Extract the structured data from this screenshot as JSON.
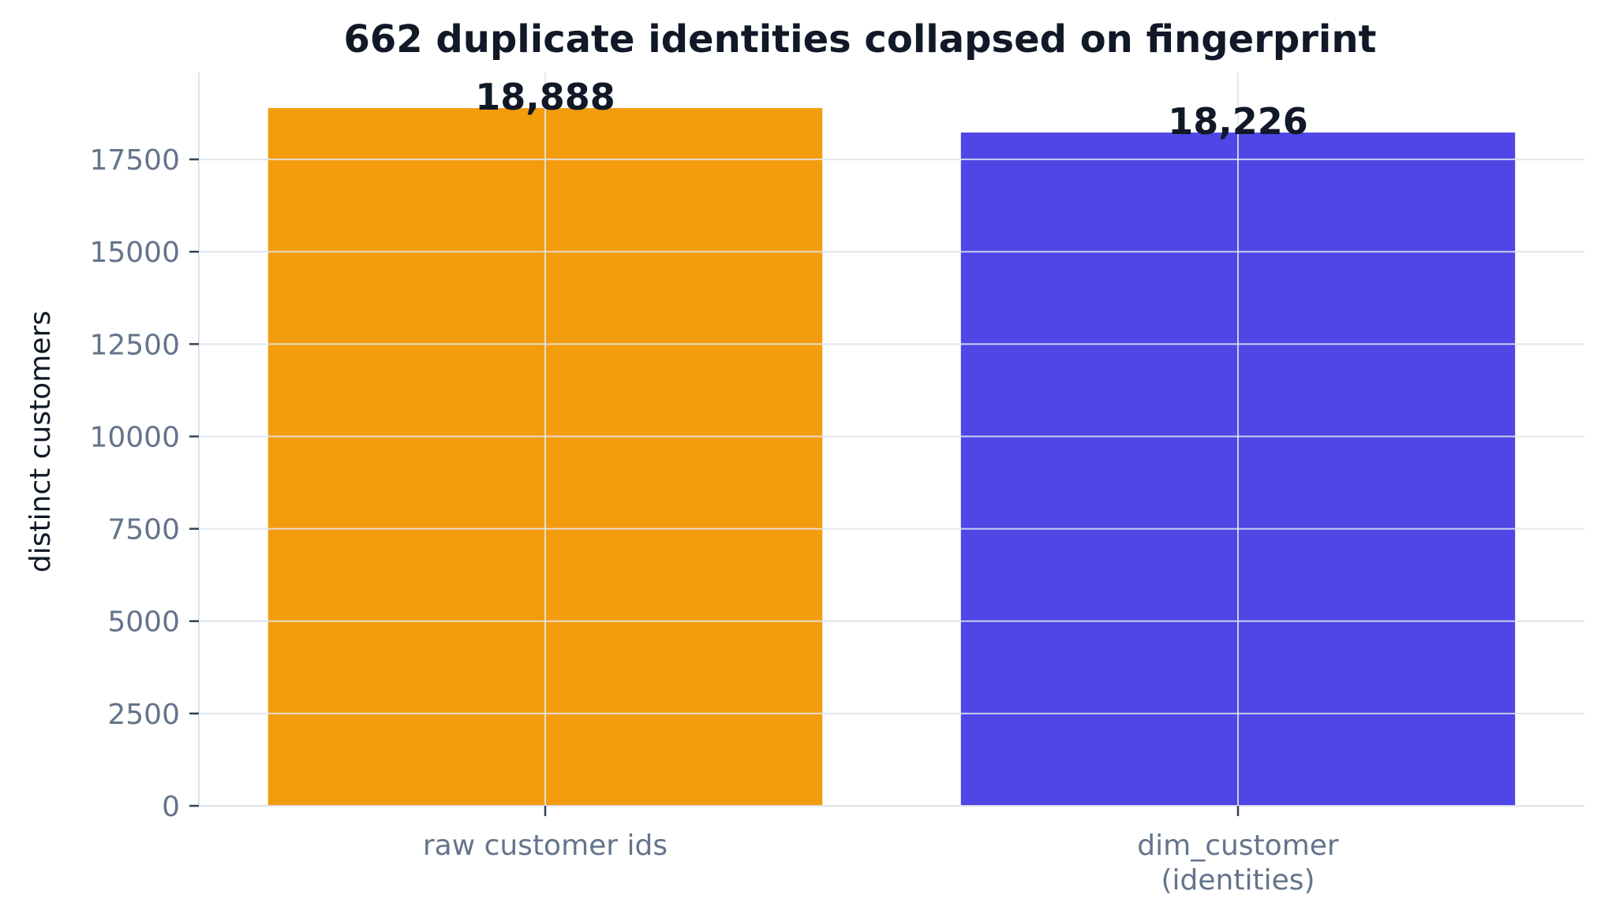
{
  "chart_data": {
    "type": "bar",
    "title": "662 duplicate identities collapsed on fingerprint",
    "xlabel": "",
    "ylabel": "distinct customers",
    "categories": [
      [
        "raw customer ids"
      ],
      [
        "dim_customer",
        "(identities)"
      ]
    ],
    "values": [
      18888,
      18226
    ],
    "value_labels": [
      "18,888",
      "18,226"
    ],
    "colors": [
      "#f39c0d",
      "#4f46e5"
    ],
    "ylim": [
      0,
      19850
    ],
    "yticks": [
      0,
      2500,
      5000,
      7500,
      10000,
      12500,
      15000,
      17500
    ],
    "grid": true,
    "legend": "none"
  }
}
